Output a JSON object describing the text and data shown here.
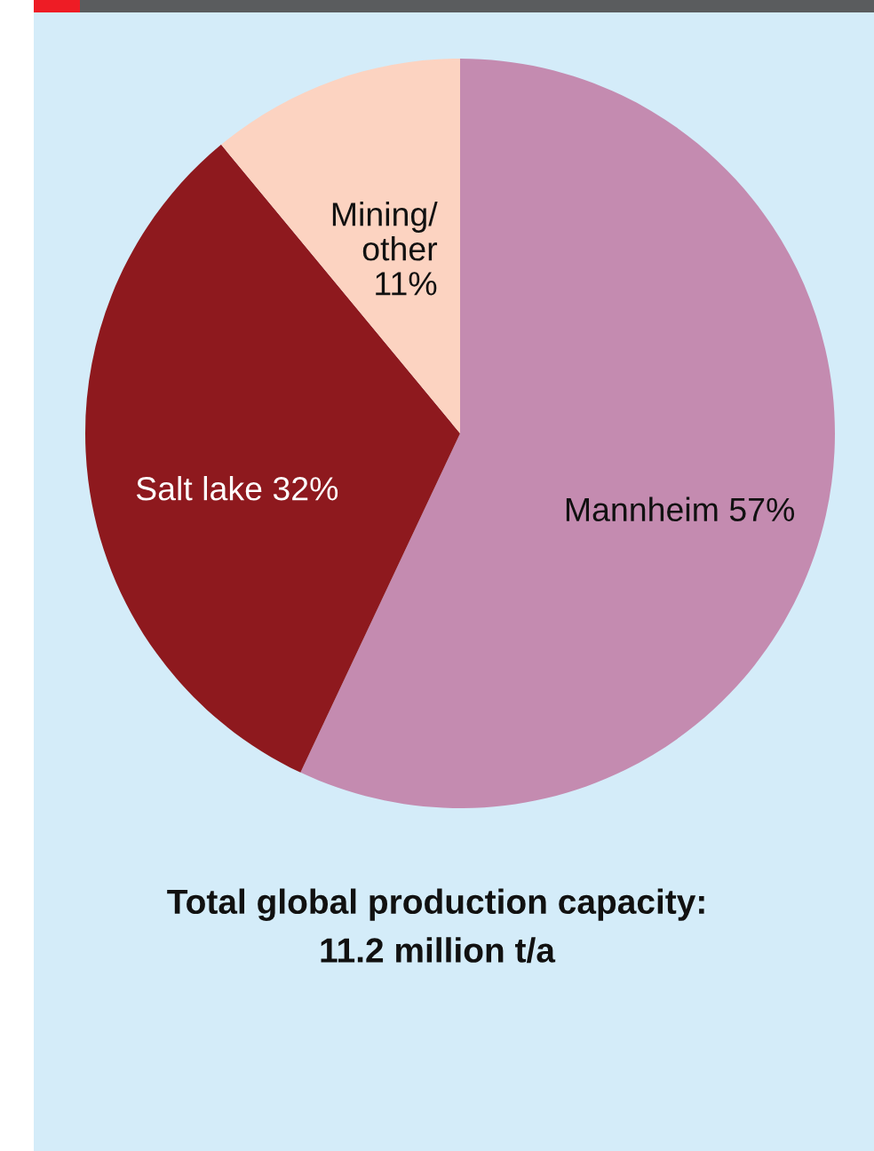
{
  "chart_data": {
    "type": "pie",
    "title": "Total global production capacity:\n11.2 million t/a",
    "categories": [
      "Mannheim",
      "Salt lake",
      "Mining/\nother"
    ],
    "values": [
      57,
      32,
      11
    ],
    "colors": [
      "#c48bb0",
      "#8e191e",
      "#fcd3c1"
    ],
    "value_labels": [
      "57%",
      "32%",
      "11%"
    ]
  }
}
